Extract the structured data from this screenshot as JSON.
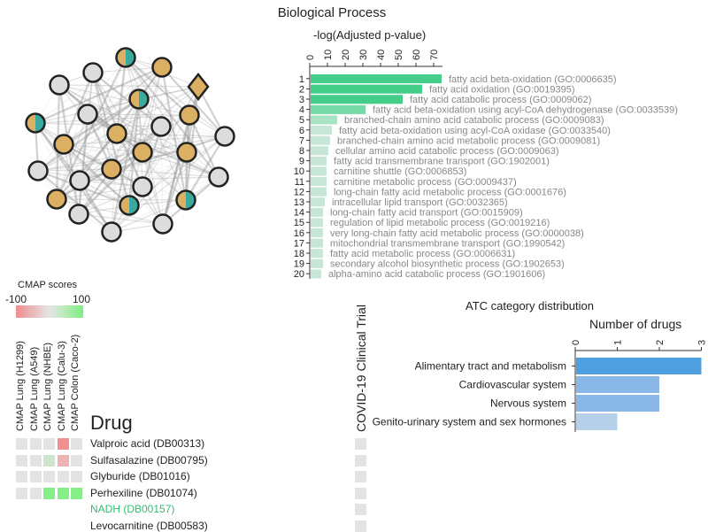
{
  "bp": {
    "title": "Biological Process",
    "axis_title": "-log(Adjusted p-value)",
    "ticks": [
      0,
      10,
      20,
      30,
      40,
      50,
      60,
      70
    ],
    "terms": [
      {
        "rank": "1",
        "label": "fatty acid beta-oxidation (GO:0006635)",
        "value": 74
      },
      {
        "rank": "2",
        "label": "fatty acid oxidation (GO:0019395)",
        "value": 63
      },
      {
        "rank": "3",
        "label": "fatty acid catabolic process (GO:0009062)",
        "value": 52
      },
      {
        "rank": "4",
        "label": "fatty acid beta-oxidation using acyl-CoA dehydrogenase (GO:0033539)",
        "value": 31
      },
      {
        "rank": "5",
        "label": "branched-chain amino acid catabolic process (GO:0009083)",
        "value": 15
      },
      {
        "rank": "6",
        "label": "fatty acid beta-oxidation using acyl-CoA oxidase (GO:0033540)",
        "value": 12
      },
      {
        "rank": "7",
        "label": "branched-chain amino acid metabolic process (GO:0009081)",
        "value": 11
      },
      {
        "rank": "8",
        "label": "cellular amino acid catabolic process (GO:0009063)",
        "value": 10
      },
      {
        "rank": "9",
        "label": "fatty acid transmembrane transport (GO:1902001)",
        "value": 9
      },
      {
        "rank": "10",
        "label": "carnitine shuttle (GO:0006853)",
        "value": 9
      },
      {
        "rank": "11",
        "label": "carnitine metabolic process (GO:0009437)",
        "value": 9
      },
      {
        "rank": "12",
        "label": "long-chain fatty acid metabolic process (GO:0001676)",
        "value": 9
      },
      {
        "rank": "13",
        "label": "intracellular lipid transport (GO:0032365)",
        "value": 8
      },
      {
        "rank": "14",
        "label": "long-chain fatty acid transport (GO:0015909)",
        "value": 7
      },
      {
        "rank": "15",
        "label": "regulation of lipid metabolic process (GO:0019216)",
        "value": 7
      },
      {
        "rank": "16",
        "label": "very long-chain fatty acid metabolic process (GO:0000038)",
        "value": 7
      },
      {
        "rank": "17",
        "label": "mitochondrial transmembrane transport (GO:1990542)",
        "value": 7
      },
      {
        "rank": "18",
        "label": "fatty acid metabolic process (GO:0006631)",
        "value": 7
      },
      {
        "rank": "19",
        "label": "secondary alcohol biosynthetic process (GO:1902653)",
        "value": 7
      },
      {
        "rank": "20",
        "label": "alpha-amino acid catabolic process (GO:1901606)",
        "value": 6
      }
    ]
  },
  "atc": {
    "title": "ATC category distribution",
    "axis_title": "Number of drugs",
    "ticks": [
      0,
      1,
      2,
      3
    ],
    "categories": [
      {
        "label": "Alimentary tract and metabolism",
        "value": 3
      },
      {
        "label": "Cardiovascular system",
        "value": 2
      },
      {
        "label": "Nervous system",
        "value": 2
      },
      {
        "label": "Genito-urinary system and sex hormones",
        "value": 1
      }
    ]
  },
  "cmap": {
    "legend_title": "CMAP scores",
    "legend_min": "-100",
    "legend_max": "100",
    "columns": [
      "CMAP Lung (H1299)",
      "CMAP Lung (A549)",
      "CMAP Lung (NHBE)",
      "CMAP Lung (Calu-3)",
      "CMAP Colon (Caco-2)"
    ],
    "drug_header": "Drug",
    "covid_header": "COVID-19 Clinical Trial",
    "drugs": [
      {
        "name": "Valproic acid (DB00313)",
        "highlight": false,
        "scores": [
          0,
          0,
          0,
          -60,
          0
        ]
      },
      {
        "name": "Sulfasalazine (DB00795)",
        "highlight": false,
        "scores": [
          0,
          0,
          20,
          -40,
          0
        ]
      },
      {
        "name": "Glyburide (DB01016)",
        "highlight": false,
        "scores": [
          0,
          0,
          0,
          0,
          0
        ]
      },
      {
        "name": "Perhexiline (DB01074)",
        "highlight": false,
        "scores": [
          0,
          0,
          80,
          80,
          80
        ]
      },
      {
        "name": "NADH (DB00157)",
        "highlight": true,
        "scores": null
      },
      {
        "name": "Levocarnitine (DB00583)",
        "highlight": false,
        "scores": null
      }
    ]
  },
  "network": {
    "node_types": [
      "gray",
      "gold",
      "split",
      "diamond"
    ]
  },
  "chart_data": [
    {
      "type": "bar",
      "title": "Biological Process",
      "xlabel": "-log(Adjusted p-value)",
      "ylabel": "",
      "xlim": [
        0,
        75
      ],
      "categories": [
        "fatty acid beta-oxidation (GO:0006635)",
        "fatty acid oxidation (GO:0019395)",
        "fatty acid catabolic process (GO:0009062)",
        "fatty acid beta-oxidation using acyl-CoA dehydrogenase (GO:0033539)",
        "branched-chain amino acid catabolic process (GO:0009083)",
        "fatty acid beta-oxidation using acyl-CoA oxidase (GO:0033540)",
        "branched-chain amino acid metabolic process (GO:0009081)",
        "cellular amino acid catabolic process (GO:0009063)",
        "fatty acid transmembrane transport (GO:1902001)",
        "carnitine shuttle (GO:0006853)",
        "carnitine metabolic process (GO:0009437)",
        "long-chain fatty acid metabolic process (GO:0001676)",
        "intracellular lipid transport (GO:0032365)",
        "long-chain fatty acid transport (GO:0015909)",
        "regulation of lipid metabolic process (GO:0019216)",
        "very long-chain fatty acid metabolic process (GO:0000038)",
        "mitochondrial transmembrane transport (GO:1990542)",
        "fatty acid metabolic process (GO:0006631)",
        "secondary alcohol biosynthetic process (GO:1902653)",
        "alpha-amino acid catabolic process (GO:1901606)"
      ],
      "values": [
        74,
        63,
        52,
        31,
        15,
        12,
        11,
        10,
        9,
        9,
        9,
        9,
        8,
        7,
        7,
        7,
        7,
        7,
        7,
        6
      ]
    },
    {
      "type": "bar",
      "title": "ATC category distribution",
      "xlabel": "Number of drugs",
      "ylabel": "",
      "xlim": [
        0,
        3
      ],
      "categories": [
        "Alimentary tract and metabolism",
        "Cardiovascular system",
        "Nervous system",
        "Genito-urinary system and sex hormones"
      ],
      "values": [
        3,
        2,
        2,
        1
      ]
    }
  ]
}
